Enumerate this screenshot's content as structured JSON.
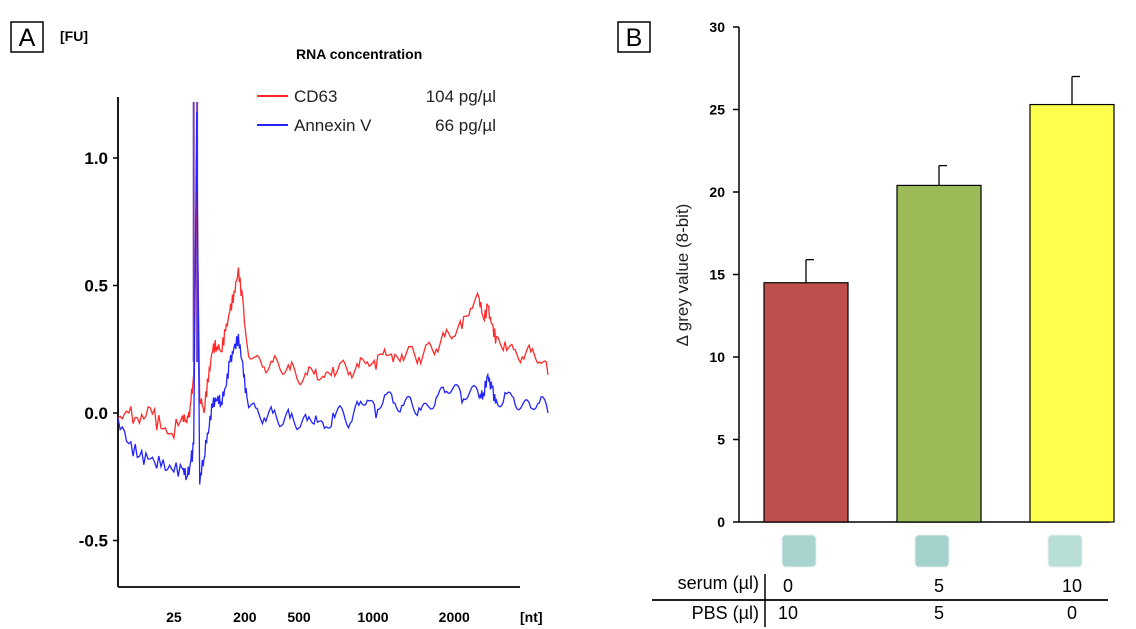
{
  "chart_data": [
    {
      "panel": "A",
      "type": "line",
      "y_unit": "[FU]",
      "x_unit": "[nt]",
      "ylim": [
        -0.7,
        1.22
      ],
      "xlim": [
        0,
        1000
      ],
      "yticks": [
        {
          "label": "1.0",
          "value": 1.0
        },
        {
          "label": "0.5",
          "value": 0.5
        },
        {
          "label": "0.0",
          "value": 0.0
        },
        {
          "label": "-0.5",
          "value": -0.5
        }
      ],
      "xticks": [
        {
          "label": "25",
          "pos": 130
        },
        {
          "label": "200",
          "pos": 295
        },
        {
          "label": "500",
          "pos": 421
        },
        {
          "label": "1000",
          "pos": 593
        },
        {
          "label": "2000",
          "pos": 782
        }
      ],
      "legend_title": "RNA concentration",
      "series": [
        {
          "name": "CD63",
          "concentration": "104 pg/µl",
          "color": "#ff2a2a",
          "x": [
            0,
            25,
            50,
            75,
            100,
            125,
            150,
            160,
            168,
            176,
            183,
            190,
            200,
            210,
            220,
            230,
            240,
            250,
            260,
            270,
            280,
            290,
            300,
            320,
            340,
            360,
            380,
            400,
            420,
            440,
            460,
            480,
            500,
            520,
            540,
            560,
            580,
            600,
            620,
            640,
            660,
            680,
            700,
            720,
            740,
            760,
            780,
            800,
            820,
            840,
            850,
            860,
            870,
            880,
            900,
            920,
            940,
            960,
            980,
            1000
          ],
          "y": [
            -0.02,
            0.0,
            -0.04,
            0.02,
            -0.06,
            -0.08,
            -0.01,
            -0.04,
            0.03,
            0.15,
            0.95,
            0.05,
            0.0,
            0.12,
            0.24,
            0.26,
            0.24,
            0.32,
            0.4,
            0.48,
            0.57,
            0.45,
            0.27,
            0.22,
            0.18,
            0.2,
            0.16,
            0.17,
            0.12,
            0.15,
            0.17,
            0.14,
            0.18,
            0.2,
            0.16,
            0.18,
            0.2,
            0.17,
            0.25,
            0.2,
            0.23,
            0.26,
            0.22,
            0.27,
            0.25,
            0.3,
            0.3,
            0.33,
            0.41,
            0.45,
            0.37,
            0.42,
            0.35,
            0.3,
            0.28,
            0.25,
            0.22,
            0.24,
            0.2,
            0.15
          ]
        },
        {
          "name": "Annexin V",
          "concentration": "66 pg/µl",
          "color": "#2323ff",
          "x": [
            0,
            25,
            50,
            75,
            100,
            125,
            150,
            160,
            168,
            176,
            183,
            190,
            200,
            210,
            220,
            230,
            240,
            250,
            260,
            270,
            280,
            290,
            300,
            320,
            340,
            360,
            380,
            400,
            420,
            440,
            460,
            480,
            500,
            520,
            540,
            560,
            580,
            600,
            620,
            640,
            660,
            680,
            700,
            720,
            740,
            760,
            780,
            800,
            820,
            840,
            850,
            860,
            870,
            880,
            900,
            920,
            940,
            960,
            980,
            1000
          ],
          "y": [
            -0.02,
            -0.12,
            -0.17,
            -0.18,
            -0.21,
            -0.22,
            -0.22,
            -0.25,
            -0.2,
            -0.12,
            1.18,
            -0.28,
            -0.18,
            -0.08,
            0.02,
            0.05,
            0.04,
            0.1,
            0.2,
            0.26,
            0.31,
            0.2,
            0.06,
            0.02,
            -0.02,
            0.0,
            -0.05,
            -0.02,
            -0.06,
            -0.03,
            -0.01,
            -0.06,
            0.0,
            0.02,
            -0.04,
            0.03,
            0.05,
            -0.02,
            0.07,
            0.04,
            0.03,
            0.06,
            0.02,
            0.03,
            0.06,
            0.08,
            0.1,
            0.04,
            0.09,
            0.06,
            0.08,
            0.15,
            0.1,
            0.05,
            0.08,
            0.06,
            0.03,
            0.02,
            0.04,
            0.0
          ]
        }
      ],
      "marker_peak": {
        "color": "#7b3fb8",
        "x": [
          176,
          184
        ],
        "ytop": 1.22
      }
    },
    {
      "panel": "B",
      "type": "bar",
      "ylabel": "Δ grey value (8-bit)",
      "ylim": [
        0,
        30
      ],
      "yticks": [
        0,
        5,
        10,
        15,
        20,
        25,
        30
      ],
      "values": [
        14.5,
        20.4,
        25.3
      ],
      "errors": [
        1.4,
        1.2,
        1.7
      ],
      "colors": [
        "#c0504d",
        "#9bbb59",
        "#ffff4d"
      ],
      "table": {
        "row1_label": "serum (µl)",
        "row1_values": [
          "0",
          "5",
          "10"
        ],
        "row2_label": "PBS (µl)",
        "row2_values": [
          "10",
          "5",
          "0"
        ]
      },
      "swatch_colors": [
        "#a8d4d0",
        "#a4d2cc",
        "#b8ded8"
      ]
    }
  ]
}
